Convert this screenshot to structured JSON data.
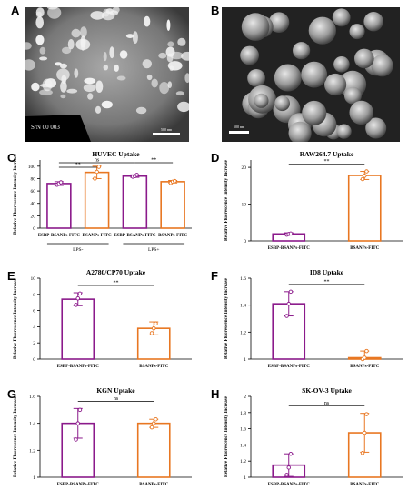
{
  "figure": {
    "panels": {
      "A": {
        "letter": "A",
        "scale_label": "500 nm",
        "stamp_text": "S/N 00 003"
      },
      "B": {
        "letter": "B",
        "scale_label": "500 nm"
      }
    },
    "colors": {
      "purple": "#8b1a8b",
      "orange": "#e87722"
    }
  },
  "chart_data": [
    {
      "id": "C",
      "letter": "C",
      "type": "bar",
      "title": "HUVEC Uptake",
      "ylabel": "Relative Fluorescence Intensity Increase",
      "categories": [
        "ESBP-BSANPs-FITC",
        "BSANPs-FITC",
        "ESBP-BSANPs-FITC",
        "BSANPs-FITC"
      ],
      "groups": [
        {
          "label": "LPS-",
          "span": [
            0,
            1
          ]
        },
        {
          "label": "LPS+",
          "span": [
            2,
            3
          ]
        }
      ],
      "values": [
        72,
        90,
        84,
        75
      ],
      "errors": [
        3,
        10,
        2,
        2
      ],
      "points": [
        [
          70,
          72,
          74
        ],
        [
          80,
          91,
          99
        ],
        [
          83,
          84,
          86
        ],
        [
          73,
          75,
          76
        ]
      ],
      "colors": [
        "#8b1a8b",
        "#e87722",
        "#8b1a8b",
        "#e87722"
      ],
      "ylim": [
        0,
        110
      ],
      "yticks": [
        0,
        20,
        40,
        60,
        80,
        100
      ],
      "significance": [
        {
          "from": 0,
          "to": 1,
          "label": "**"
        },
        {
          "from": 0,
          "to": 2,
          "label": "ns"
        },
        {
          "from": 2,
          "to": 3,
          "label": "**"
        }
      ]
    },
    {
      "id": "D",
      "letter": "D",
      "type": "bar",
      "title": "RAW264.7 Uptake",
      "ylabel": "Relative Fluorescence Intensity Increase",
      "categories": [
        "ESBP-BSANPs-FITC",
        "BSANPs-FITC"
      ],
      "values": [
        1.9,
        17.8
      ],
      "errors": [
        0.3,
        1.1
      ],
      "points": [
        [
          1.7,
          1.9,
          2.0
        ],
        [
          16.8,
          17.7,
          18.9
        ]
      ],
      "colors": [
        "#8b1a8b",
        "#e87722"
      ],
      "ylim": [
        0,
        22
      ],
      "yticks": [
        0,
        10,
        20
      ],
      "significance": [
        {
          "from": 0,
          "to": 1,
          "label": "**"
        }
      ]
    },
    {
      "id": "E",
      "letter": "E",
      "type": "bar",
      "title": "A2780/CP70 Uptake",
      "ylabel": "Relative Fluorescence Intensity Increase",
      "categories": [
        "ESBP-BSANPs-FITC",
        "BSANPs-FITC"
      ],
      "values": [
        7.4,
        3.8
      ],
      "errors": [
        0.8,
        0.8
      ],
      "points": [
        [
          6.7,
          7.5,
          8.1
        ],
        [
          3.2,
          3.8,
          4.4
        ]
      ],
      "colors": [
        "#8b1a8b",
        "#e87722"
      ],
      "ylim": [
        0,
        10
      ],
      "yticks": [
        0,
        2,
        4,
        6,
        8,
        10
      ],
      "significance": [
        {
          "from": 0,
          "to": 1,
          "label": "**"
        }
      ]
    },
    {
      "id": "F",
      "letter": "F",
      "type": "bar",
      "title": "ID8 Uptake",
      "ylabel": "Relative Fluorescence Intensity Increase",
      "categories": [
        "ESBP-BSANPs-FITC",
        "BSANPs-FITC"
      ],
      "values": [
        1.41,
        1.01
      ],
      "errors": [
        0.09,
        0.05
      ],
      "points": [
        [
          1.32,
          1.41,
          1.5
        ],
        [
          1.0,
          1.01,
          1.06
        ]
      ],
      "colors": [
        "#8b1a8b",
        "#e87722"
      ],
      "ylim": [
        1.0,
        1.6
      ],
      "yticks": [
        1.0,
        1.2,
        1.4,
        1.6
      ],
      "significance": [
        {
          "from": 0,
          "to": 1,
          "label": "**"
        }
      ]
    },
    {
      "id": "G",
      "letter": "G",
      "type": "bar",
      "title": "KGN Uptake",
      "ylabel": "Relative Fluorescence Intensity Increase",
      "categories": [
        "ESBP-BSANPs-FITC",
        "BSANPs-FITC"
      ],
      "values": [
        1.4,
        1.4
      ],
      "errors": [
        0.11,
        0.03
      ],
      "points": [
        [
          1.28,
          1.4,
          1.5
        ],
        [
          1.37,
          1.4,
          1.43
        ]
      ],
      "colors": [
        "#8b1a8b",
        "#e87722"
      ],
      "ylim": [
        1.0,
        1.6
      ],
      "yticks": [
        1.0,
        1.2,
        1.4,
        1.6
      ],
      "significance": [
        {
          "from": 0,
          "to": 1,
          "label": "ns"
        }
      ]
    },
    {
      "id": "H",
      "letter": "H",
      "type": "bar",
      "title": "SK-OV-3 Uptake",
      "ylabel": "Relative Fluorescence Intensity Increase",
      "categories": [
        "ESBP-BSANPs-FITC",
        "BSANPs-FITC"
      ],
      "values": [
        1.15,
        1.55
      ],
      "errors": [
        0.14,
        0.24
      ],
      "points": [
        [
          1.03,
          1.12,
          1.29
        ],
        [
          1.3,
          1.55,
          1.78
        ]
      ],
      "colors": [
        "#8b1a8b",
        "#e87722"
      ],
      "ylim": [
        1.0,
        2.0
      ],
      "yticks": [
        1.0,
        1.2,
        1.4,
        1.6,
        1.8,
        2.0
      ],
      "significance": [
        {
          "from": 0,
          "to": 1,
          "label": "ns"
        }
      ]
    }
  ]
}
